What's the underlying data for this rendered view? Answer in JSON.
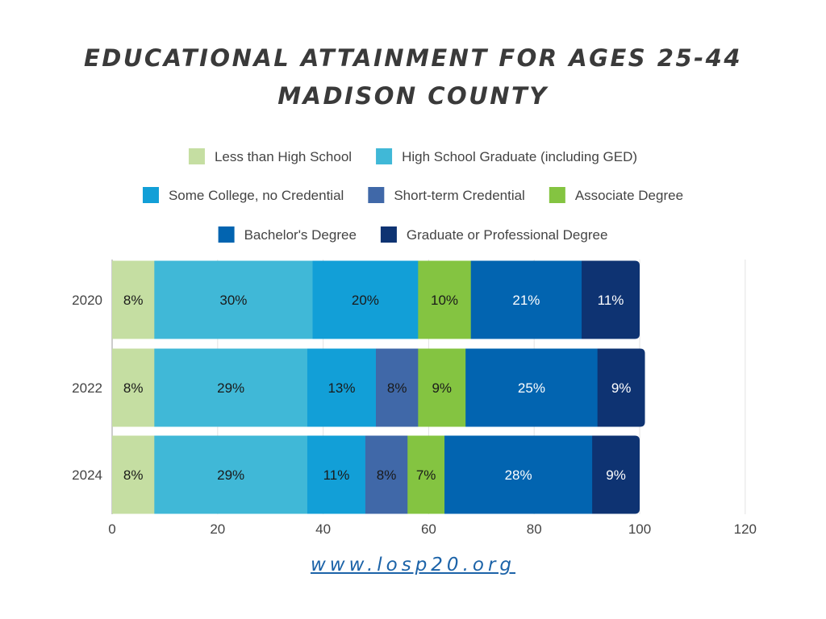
{
  "footer": {
    "url": "www.losp20.org"
  },
  "chart_data": {
    "type": "bar",
    "orientation": "horizontal",
    "stacked": true,
    "title": "EDUCATIONAL ATTAINMENT FOR AGES 25-44",
    "subtitle": "MADISON COUNTY",
    "categories": [
      "2020",
      "2022",
      "2024"
    ],
    "xlim": [
      0,
      120
    ],
    "xticks": [
      0,
      20,
      40,
      60,
      80,
      100,
      120
    ],
    "grid": true,
    "legend_position": "top",
    "series": [
      {
        "name": "Less than High School",
        "color": "#c5dea2",
        "values": [
          8,
          8,
          8
        ],
        "labels": [
          "8%",
          "8%",
          "8%"
        ]
      },
      {
        "name": "High School Graduate (including GED)",
        "color": "#40b8d7",
        "values": [
          30,
          29,
          29
        ],
        "labels": [
          "30%",
          "29%",
          "29%"
        ]
      },
      {
        "name": "Some College, no Credential",
        "color": "#129fd7",
        "values": [
          20,
          13,
          11
        ],
        "labels": [
          "20%",
          "13%",
          "11%"
        ]
      },
      {
        "name": "Short-term Credential",
        "color": "#4068a8",
        "values": [
          0,
          8,
          8
        ],
        "labels": [
          "",
          "8%",
          "8%"
        ]
      },
      {
        "name": "Associate Degree",
        "color": "#84c441",
        "values": [
          10,
          9,
          7
        ],
        "labels": [
          "10%",
          "9%",
          "7%"
        ]
      },
      {
        "name": "Bachelor's Degree",
        "color": "#0264b0",
        "values": [
          21,
          25,
          28
        ],
        "labels": [
          "21%",
          "25%",
          "28%"
        ]
      },
      {
        "name": "Graduate or Professional Degree",
        "color": "#0e3372",
        "values": [
          11,
          9,
          9
        ],
        "labels": [
          "11%",
          "9%",
          "9%"
        ]
      }
    ]
  }
}
